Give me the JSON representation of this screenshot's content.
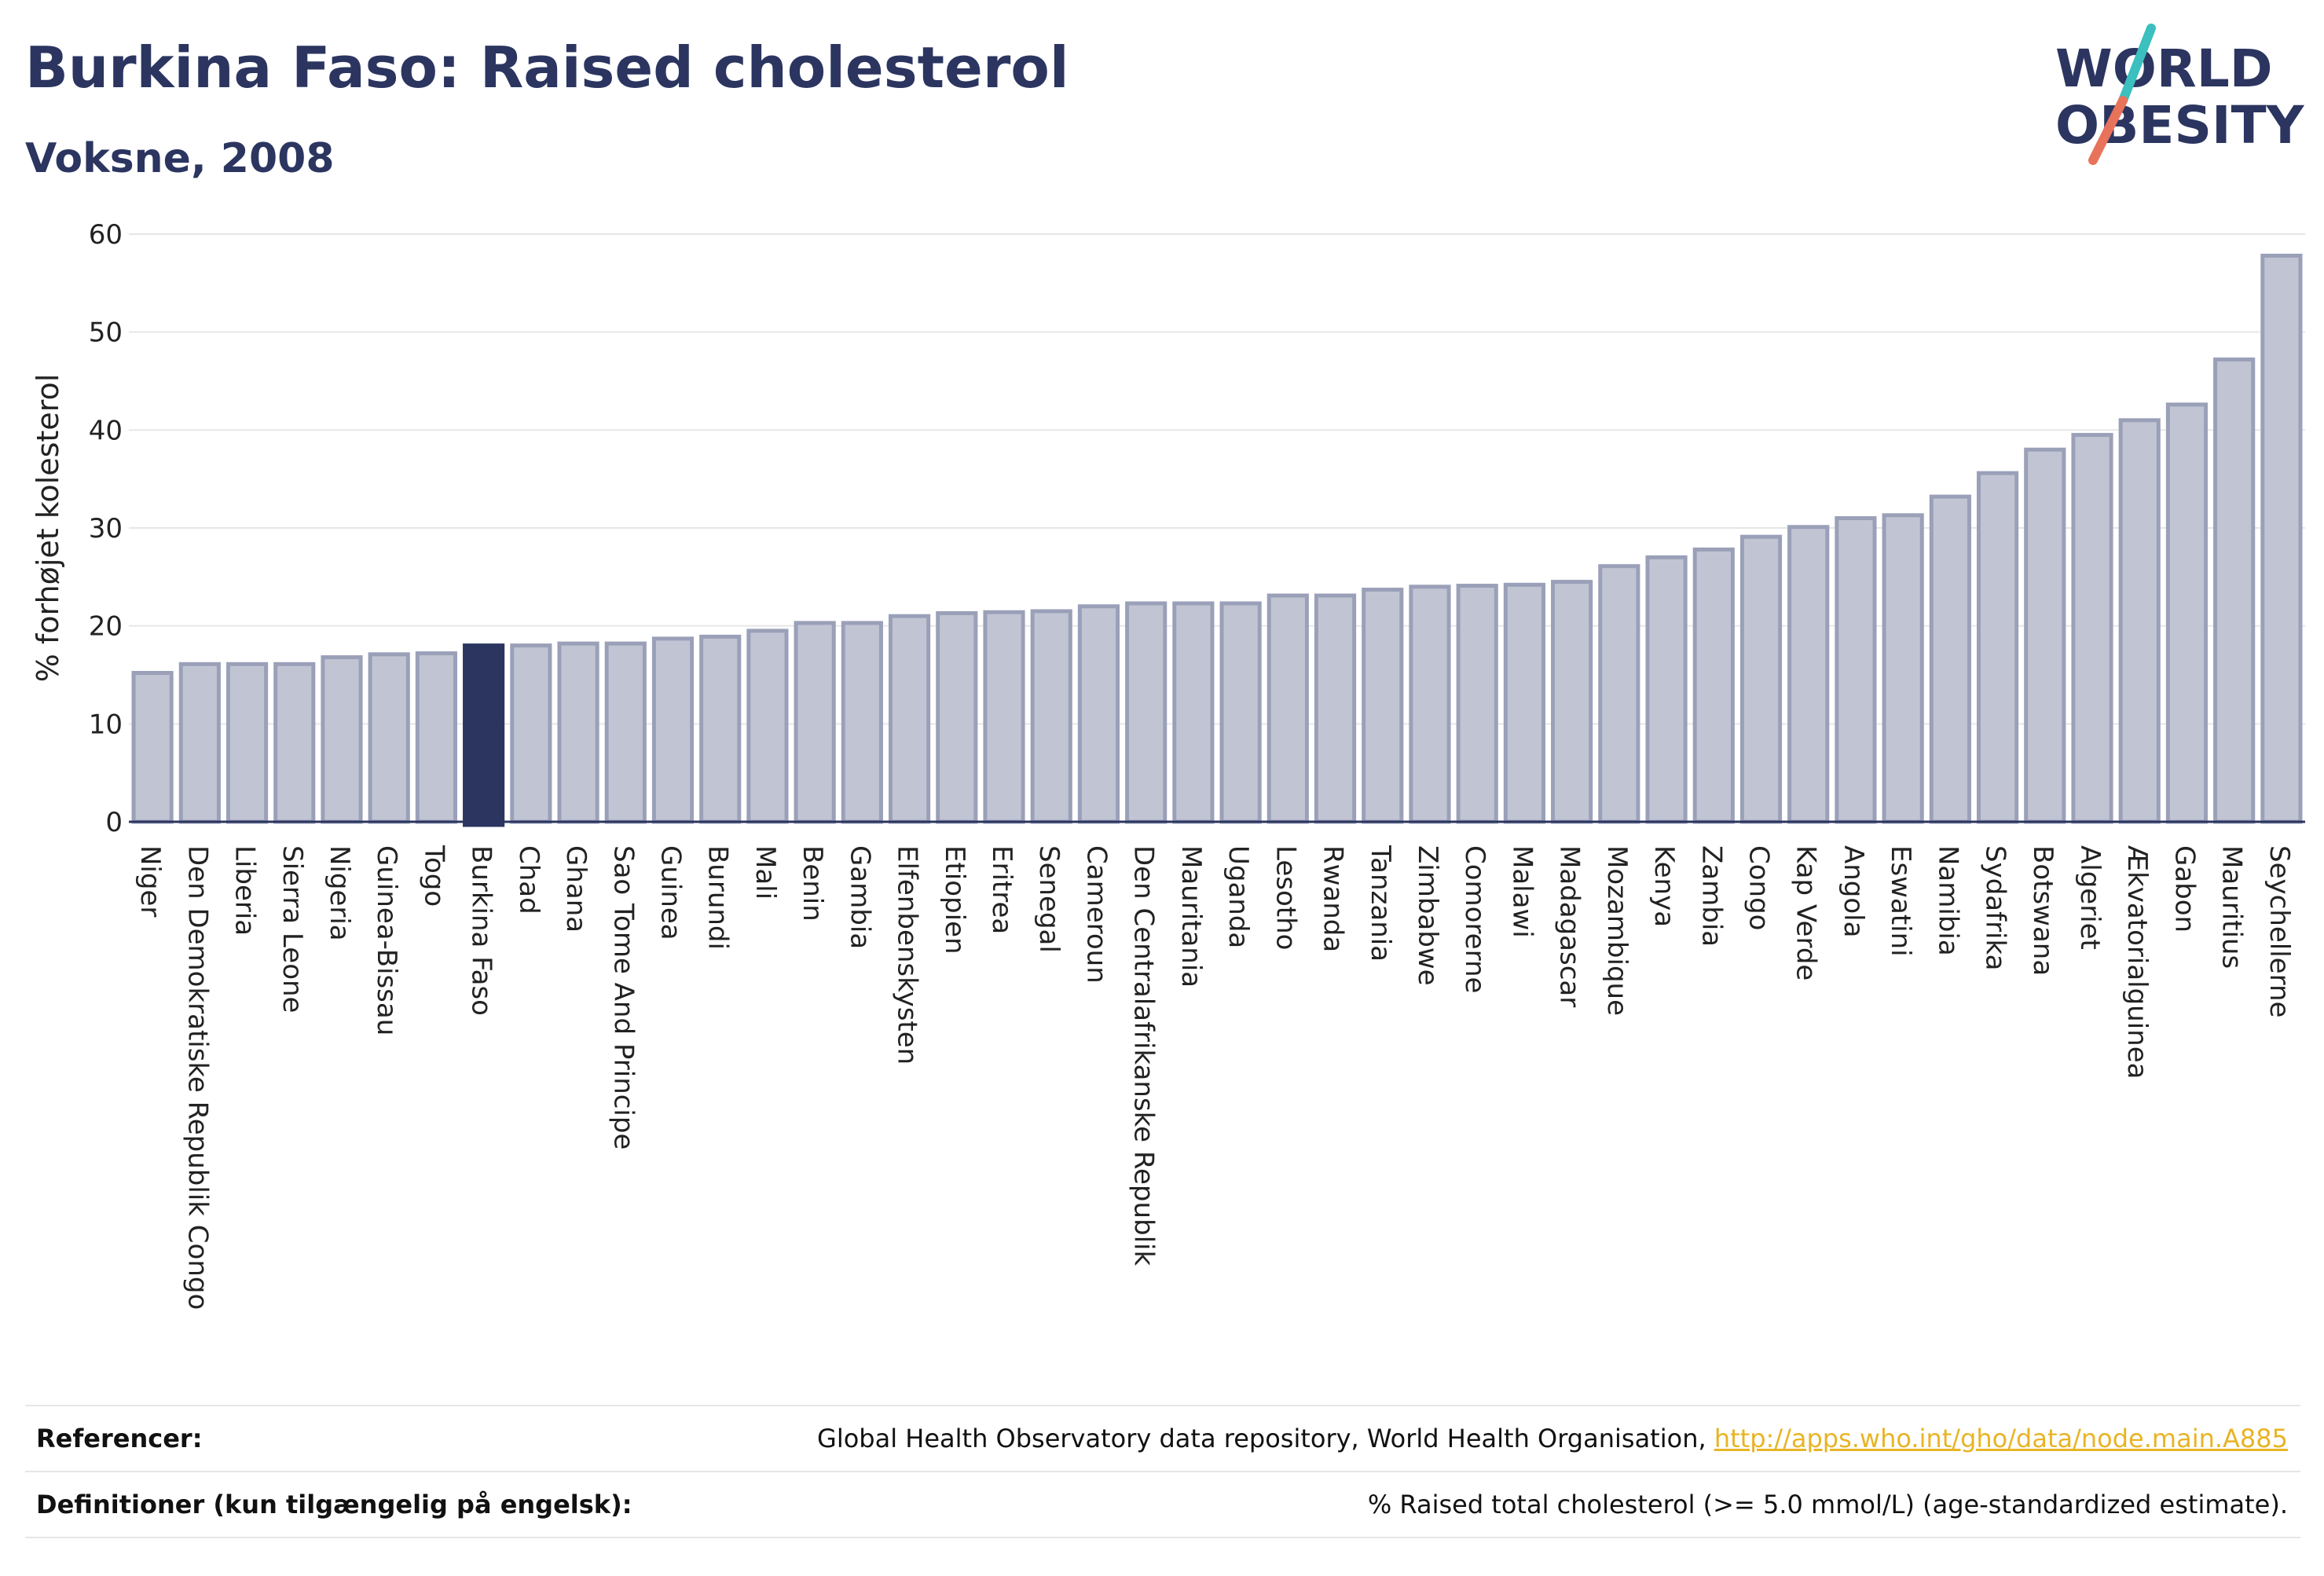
{
  "header": {
    "title": "Burkina Faso: Raised cholesterol",
    "subtitle": "Voksne, 2008"
  },
  "logo": {
    "line1": "WORLD",
    "line2": "OBESITY",
    "colors": {
      "text": "#2b3560",
      "slash_top": "#3bbfbf",
      "slash_bottom": "#e8735a"
    }
  },
  "chart_data": {
    "type": "bar",
    "title": "",
    "xlabel": "",
    "ylabel": "% forhøjet kolesterol",
    "ylim": [
      0,
      60
    ],
    "yticks": [
      0,
      10,
      20,
      30,
      40,
      50,
      60
    ],
    "grid": true,
    "highlight": "Burkina Faso",
    "colors": {
      "bar": "#c1c5d3",
      "bar_edge": "#9aa0b8",
      "highlight": "#2b3560",
      "grid": "#e6e6e6",
      "axis": "#2b3560"
    },
    "categories": [
      "Niger",
      "Den Demokratiske Republik Congo",
      "Liberia",
      "Sierra Leone",
      "Nigeria",
      "Guinea-Bissau",
      "Togo",
      "Burkina Faso",
      "Chad",
      "Ghana",
      "Sao Tome And Principe",
      "Guinea",
      "Burundi",
      "Mali",
      "Benin",
      "Gambia",
      "Elfenbenskysten",
      "Etiopien",
      "Eritrea",
      "Senegal",
      "Cameroun",
      "Den Centralafrikanske Republik",
      "Mauritania",
      "Uganda",
      "Lesotho",
      "Rwanda",
      "Tanzania",
      "Zimbabwe",
      "Comorerne",
      "Malawi",
      "Madagascar",
      "Mozambique",
      "Kenya",
      "Zambia",
      "Congo",
      "Kap Verde",
      "Angola",
      "Eswatini",
      "Namibia",
      "Sydafrika",
      "Botswana",
      "Algeriet",
      "Ækvatorialguinea",
      "Gabon",
      "Mauritius",
      "Seychellerne"
    ],
    "values": [
      15.2,
      16.1,
      16.1,
      16.1,
      16.8,
      17.1,
      17.2,
      18.0,
      18.0,
      18.2,
      18.2,
      18.7,
      18.9,
      19.5,
      20.3,
      20.3,
      21.0,
      21.3,
      21.4,
      21.5,
      22.0,
      22.3,
      22.3,
      22.3,
      23.1,
      23.1,
      23.7,
      24.0,
      24.1,
      24.2,
      24.5,
      26.1,
      27.0,
      27.8,
      29.1,
      30.1,
      31.0,
      31.3,
      33.2,
      35.6,
      38.0,
      39.5,
      41.0,
      42.6,
      47.2,
      57.8
    ]
  },
  "references": {
    "ref_label": "Referencer:",
    "ref_text": "Global Health Observatory data repository, World Health Organisation, ",
    "ref_link": "http://apps.who.int/gho/data/node.main.A885",
    "def_label": "Definitioner (kun tilgængelig på engelsk):",
    "def_text": "% Raised total cholesterol (>= 5.0 mmol/L) (age-standardized estimate)."
  }
}
